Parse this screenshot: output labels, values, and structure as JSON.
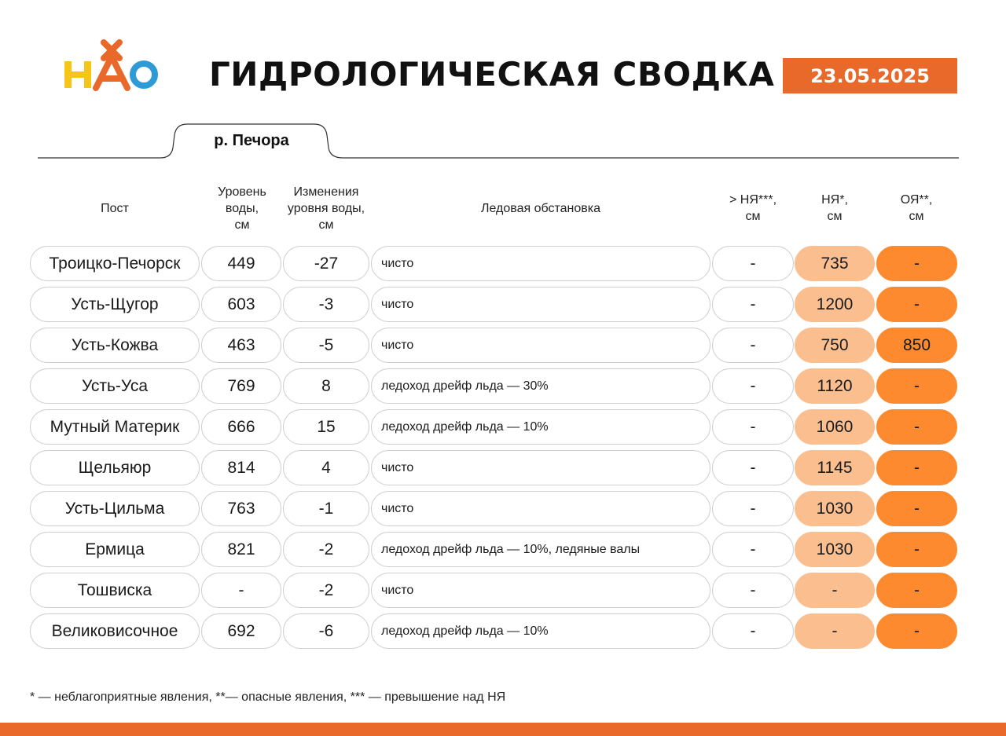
{
  "header": {
    "logo_text": "НАО",
    "title": "ГИДРОЛОГИЧЕСКАЯ СВОДКА",
    "date": "23.05.2025"
  },
  "tab": {
    "label": "р. Печора"
  },
  "columns": {
    "post": "Пост",
    "level": [
      "Уровень",
      "воды,",
      "см"
    ],
    "change": [
      "Изменения",
      "уровня воды,",
      "см"
    ],
    "ice": "Ледовая обстановка",
    "over_ny": [
      "> НЯ***,",
      "см"
    ],
    "ny": [
      "НЯ*,",
      "см"
    ],
    "oy": [
      "ОЯ**,",
      "см"
    ]
  },
  "rows": [
    {
      "post": "Троицко-Печорск",
      "level": "449",
      "change": "-27",
      "ice": "чисто",
      "over_ny": "-",
      "ny": "735",
      "oy": "-"
    },
    {
      "post": "Усть-Щугор",
      "level": "603",
      "change": "-3",
      "ice": "чисто",
      "over_ny": "-",
      "ny": "1200",
      "oy": "-"
    },
    {
      "post": "Усть-Кожва",
      "level": "463",
      "change": "-5",
      "ice": "чисто",
      "over_ny": "-",
      "ny": "750",
      "oy": "850"
    },
    {
      "post": "Усть-Уса",
      "level": "769",
      "change": "8",
      "ice": "ледоход дрейф льда — 30%",
      "over_ny": "-",
      "ny": "1120",
      "oy": "-"
    },
    {
      "post": "Мутный Материк",
      "level": "666",
      "change": "15",
      "ice": "ледоход дрейф льда — 10%",
      "over_ny": "-",
      "ny": "1060",
      "oy": "-"
    },
    {
      "post": "Щельяюр",
      "level": "814",
      "change": "4",
      "ice": "чисто",
      "over_ny": "-",
      "ny": "1145",
      "oy": "-"
    },
    {
      "post": "Усть-Цильма",
      "level": "763",
      "change": "-1",
      "ice": "чисто",
      "over_ny": "-",
      "ny": "1030",
      "oy": "-"
    },
    {
      "post": "Ермица",
      "level": "821",
      "change": "-2",
      "ice": "ледоход дрейф льда — 10%, ледяные валы",
      "over_ny": "-",
      "ny": "1030",
      "oy": "-"
    },
    {
      "post": "Тошвиска",
      "level": "-",
      "change": "-2",
      "ice": "чисто",
      "over_ny": "-",
      "ny": "-",
      "oy": "-"
    },
    {
      "post": "Великовисочное",
      "level": "692",
      "change": "-6",
      "ice": "ледоход дрейф льда — 10%",
      "over_ny": "-",
      "ny": "-",
      "oy": "-"
    }
  ],
  "footnote": "* — неблагоприятные явления, **— опасные явления, *** — превышение над НЯ",
  "colors": {
    "accent": "#e8692a",
    "ny_fill": "#fbbf8f",
    "oy_fill": "#fd8a2e",
    "logo_yellow": "#f5c518",
    "logo_orange": "#e8692a",
    "logo_blue": "#2f9bd6"
  }
}
